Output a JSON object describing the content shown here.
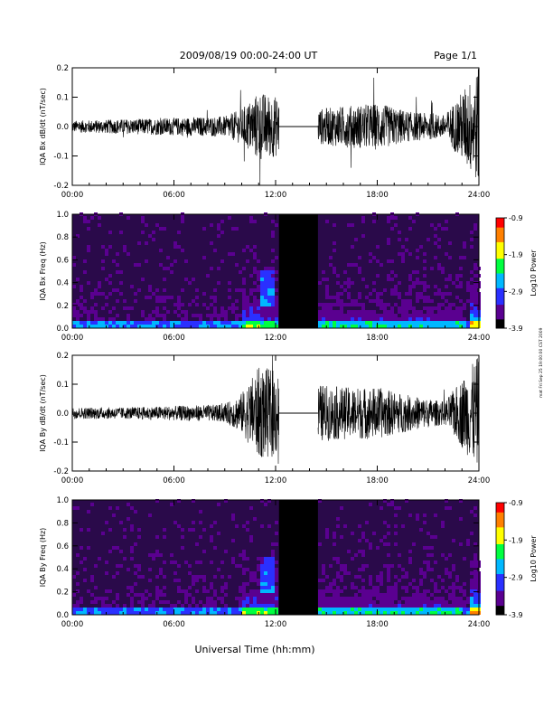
{
  "header": {
    "title": "2009/08/19   00:00-24:00 UT",
    "page": "Page 1/1"
  },
  "footer": {
    "xlabel": "Universal Time (hh:mm)",
    "side_note": "mat Fri Sep 25 19:00:00 CST 2009"
  },
  "colors": {
    "trace": "#000000",
    "spectrogram_background": "#2a0a4a",
    "gap": "#000000"
  },
  "colorbar": {
    "label": "Log10 Power",
    "ticks": [
      "-0.9",
      "-1.9",
      "-2.9",
      "-3.9"
    ],
    "range": [
      -3.9,
      -0.9
    ],
    "colormap": [
      "#000000",
      "#5a0090",
      "#2a30ff",
      "#00b8ff",
      "#00ff40",
      "#ffff00",
      "#ff8000",
      "#ff0000"
    ]
  },
  "chart_data": [
    {
      "type": "line",
      "ylabel": "IQA Bx dB/dt (nT/sec)",
      "x_ticks": [
        "00:00",
        "06:00",
        "12:00",
        "18:00",
        "24:00"
      ],
      "xlim": [
        0,
        24
      ],
      "ylim": [
        -0.2,
        0.2
      ],
      "y_ticks": [
        "0.2",
        "0.1",
        "0.0",
        "-0.1",
        "-0.2"
      ],
      "data_gap_hours": [
        12.2,
        14.5
      ],
      "envelope": [
        {
          "hour": 0,
          "amp": 0.02
        },
        {
          "hour": 3,
          "amp": 0.025
        },
        {
          "hour": 6,
          "amp": 0.03
        },
        {
          "hour": 9,
          "amp": 0.035
        },
        {
          "hour": 10,
          "amp": 0.06
        },
        {
          "hour": 11,
          "amp": 0.12
        },
        {
          "hour": 12.2,
          "amp": 0.1
        },
        {
          "hour": 14.5,
          "amp": 0.06
        },
        {
          "hour": 16,
          "amp": 0.07
        },
        {
          "hour": 18,
          "amp": 0.08
        },
        {
          "hour": 20,
          "amp": 0.05
        },
        {
          "hour": 22,
          "amp": 0.04
        },
        {
          "hour": 24,
          "amp": 0.2
        }
      ]
    },
    {
      "type": "heatmap",
      "ylabel": "IQA Bx Freq (Hz)",
      "x_ticks": [
        "00:00",
        "06:00",
        "12:00",
        "18:00",
        "24:00"
      ],
      "xlim": [
        0,
        24
      ],
      "ylim": [
        0.0,
        1.0
      ],
      "y_ticks": [
        "1.0",
        "0.8",
        "0.6",
        "0.4",
        "0.2",
        "0.0"
      ],
      "data_gap_hours": [
        12.2,
        14.5
      ],
      "log10_power_range": [
        -3.9,
        -0.9
      ]
    },
    {
      "type": "line",
      "ylabel": "IQA By dB/dt (nT/sec)",
      "x_ticks": [
        "00:00",
        "06:00",
        "12:00",
        "18:00",
        "24:00"
      ],
      "xlim": [
        0,
        24
      ],
      "ylim": [
        -0.2,
        0.2
      ],
      "y_ticks": [
        "0.2",
        "0.1",
        "0.0",
        "-0.1",
        "-0.2"
      ],
      "data_gap_hours": [
        12.2,
        14.5
      ],
      "envelope": [
        {
          "hour": 0,
          "amp": 0.02
        },
        {
          "hour": 3,
          "amp": 0.02
        },
        {
          "hour": 6,
          "amp": 0.025
        },
        {
          "hour": 9,
          "amp": 0.03
        },
        {
          "hour": 10,
          "amp": 0.07
        },
        {
          "hour": 11,
          "amp": 0.16
        },
        {
          "hour": 12.2,
          "amp": 0.15
        },
        {
          "hour": 14.5,
          "amp": 0.1
        },
        {
          "hour": 16,
          "amp": 0.09
        },
        {
          "hour": 18,
          "amp": 0.09
        },
        {
          "hour": 20,
          "amp": 0.06
        },
        {
          "hour": 22,
          "amp": 0.04
        },
        {
          "hour": 24,
          "amp": 0.2
        }
      ]
    },
    {
      "type": "heatmap",
      "ylabel": "IQA By Freq (Hz)",
      "x_ticks": [
        "00:00",
        "06:00",
        "12:00",
        "18:00",
        "24:00"
      ],
      "xlim": [
        0,
        24
      ],
      "ylim": [
        0.0,
        1.0
      ],
      "y_ticks": [
        "1.0",
        "0.8",
        "0.6",
        "0.4",
        "0.2",
        "0.0"
      ],
      "data_gap_hours": [
        12.2,
        14.5
      ],
      "log10_power_range": [
        -3.9,
        -0.9
      ]
    }
  ]
}
